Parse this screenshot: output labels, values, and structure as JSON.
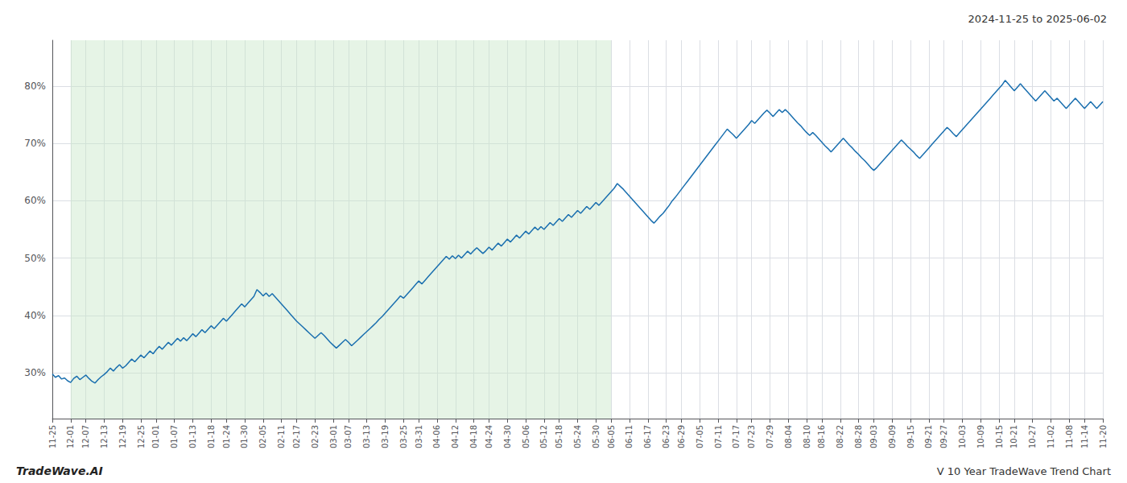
{
  "chart_data": {
    "type": "line",
    "title": "2024-11-25 to 2025-06-02",
    "annotations": [
      "TradeWave.AI",
      "V 10 Year TradeWave Trend Chart"
    ],
    "color": "#1a6faf",
    "grid": true,
    "highlight": {
      "start": "12-01",
      "end": "06-05",
      "color": "#c8e6c8"
    },
    "ylim": [
      22,
      88
    ],
    "yticks": [
      {
        "value": 30,
        "label": "30%"
      },
      {
        "value": 40,
        "label": "40%"
      },
      {
        "value": 50,
        "label": "50%"
      },
      {
        "value": 60,
        "label": "60%"
      },
      {
        "value": 70,
        "label": "70%"
      },
      {
        "value": 80,
        "label": "80%"
      }
    ],
    "categories": [
      "11-25",
      null,
      null,
      null,
      null,
      null,
      "12-01",
      null,
      null,
      null,
      null,
      "12-07",
      null,
      null,
      null,
      null,
      null,
      "12-13",
      null,
      null,
      null,
      null,
      null,
      "12-19",
      null,
      null,
      null,
      null,
      null,
      "12-25",
      null,
      null,
      null,
      null,
      "01-01",
      null,
      null,
      null,
      null,
      null,
      "01-07",
      null,
      null,
      null,
      null,
      null,
      "01-13",
      null,
      null,
      null,
      null,
      null,
      "01-18",
      null,
      null,
      null,
      null,
      "01-24",
      null,
      null,
      null,
      null,
      null,
      "01-30",
      null,
      null,
      null,
      null,
      null,
      "02-05",
      null,
      null,
      null,
      null,
      null,
      "02-11",
      null,
      null,
      null,
      null,
      "02-17",
      null,
      null,
      null,
      null,
      null,
      "02-23",
      null,
      null,
      null,
      null,
      null,
      "03-01",
      null,
      null,
      null,
      null,
      "03-07",
      null,
      null,
      null,
      null,
      null,
      "03-13",
      null,
      null,
      null,
      null,
      null,
      "03-19",
      null,
      null,
      null,
      null,
      null,
      "03-25",
      null,
      null,
      null,
      null,
      "03-31",
      null,
      null,
      null,
      null,
      null,
      "04-06",
      null,
      null,
      null,
      null,
      null,
      "04-12",
      null,
      null,
      null,
      null,
      null,
      "04-18",
      null,
      null,
      null,
      null,
      "04-24",
      null,
      null,
      null,
      null,
      null,
      "04-30",
      null,
      null,
      null,
      null,
      null,
      "05-06",
      null,
      null,
      null,
      null,
      null,
      "05-12",
      null,
      null,
      null,
      null,
      "05-18",
      null,
      null,
      null,
      null,
      null,
      "05-24",
      null,
      null,
      null,
      null,
      null,
      "05-30",
      null,
      null,
      null,
      null,
      "06-05",
      null,
      null,
      null,
      null,
      null,
      "06-11",
      null,
      null,
      null,
      null,
      null,
      "06-17",
      null,
      null,
      null,
      null,
      null,
      "06-23",
      null,
      null,
      null,
      null,
      "06-29",
      null,
      null,
      null,
      null,
      null,
      "07-05",
      null,
      null,
      null,
      null,
      null,
      "07-11",
      null,
      null,
      null,
      null,
      null,
      "07-17",
      null,
      null,
      null,
      null,
      "07-23",
      null,
      null,
      null,
      null,
      null,
      "07-29",
      null,
      null,
      null,
      null,
      null,
      "08-04",
      null,
      null,
      null,
      null,
      null,
      "08-10",
      null,
      null,
      null,
      null,
      "08-16",
      null,
      null,
      null,
      null,
      null,
      "08-22",
      null,
      null,
      null,
      null,
      null,
      "08-28",
      null,
      null,
      null,
      null,
      "09-03",
      null,
      null,
      null,
      null,
      null,
      "09-09",
      null,
      null,
      null,
      null,
      null,
      "09-15",
      null,
      null,
      null,
      null,
      null,
      "09-21",
      null,
      null,
      null,
      null,
      "09-27",
      null,
      null,
      null,
      null,
      null,
      "10-03",
      null,
      null,
      null,
      null,
      null,
      "10-09",
      null,
      null,
      null,
      null,
      null,
      "10-15",
      null,
      null,
      null,
      null,
      "10-21",
      null,
      null,
      null,
      null,
      null,
      "10-27",
      null,
      null,
      null,
      null,
      null,
      "11-02",
      null,
      null,
      null,
      null,
      null,
      "11-08",
      null,
      null,
      null,
      null,
      "11-14",
      null,
      null,
      null,
      null,
      null,
      "11-20"
    ],
    "values": [
      29.8,
      29.2,
      29.5,
      28.9,
      29.1,
      28.6,
      28.3,
      29.0,
      29.4,
      28.8,
      29.2,
      29.6,
      29.0,
      28.5,
      28.2,
      28.8,
      29.3,
      29.7,
      30.2,
      30.8,
      30.3,
      30.9,
      31.4,
      30.8,
      31.2,
      31.8,
      32.4,
      31.9,
      32.5,
      33.1,
      32.6,
      33.2,
      33.8,
      33.3,
      34.0,
      34.6,
      34.1,
      34.7,
      35.3,
      34.8,
      35.4,
      36.0,
      35.5,
      36.1,
      35.6,
      36.2,
      36.8,
      36.3,
      36.9,
      37.5,
      37.0,
      37.6,
      38.2,
      37.7,
      38.3,
      38.9,
      39.5,
      39.0,
      39.6,
      40.2,
      40.8,
      41.4,
      42.0,
      41.5,
      42.1,
      42.7,
      43.3,
      44.5,
      44.0,
      43.4,
      43.9,
      43.3,
      43.8,
      43.2,
      42.6,
      42.0,
      41.4,
      40.8,
      40.2,
      39.6,
      39.0,
      38.5,
      38.0,
      37.5,
      37.0,
      36.5,
      36.0,
      36.5,
      37.0,
      36.5,
      35.9,
      35.3,
      34.8,
      34.3,
      34.8,
      35.3,
      35.8,
      35.3,
      34.7,
      35.2,
      35.7,
      36.2,
      36.7,
      37.2,
      37.7,
      38.2,
      38.7,
      39.3,
      39.8,
      40.4,
      41.0,
      41.6,
      42.2,
      42.8,
      43.4,
      43.0,
      43.6,
      44.2,
      44.8,
      45.4,
      46.0,
      45.5,
      46.1,
      46.7,
      47.3,
      47.9,
      48.5,
      49.1,
      49.7,
      50.3,
      49.8,
      50.4,
      49.9,
      50.5,
      50.0,
      50.6,
      51.2,
      50.7,
      51.3,
      51.8,
      51.3,
      50.8,
      51.3,
      51.9,
      51.4,
      52.0,
      52.6,
      52.1,
      52.7,
      53.3,
      52.8,
      53.4,
      54.0,
      53.5,
      54.1,
      54.7,
      54.2,
      54.8,
      55.4,
      54.9,
      55.5,
      55.0,
      55.6,
      56.2,
      55.7,
      56.3,
      56.9,
      56.4,
      57.0,
      57.6,
      57.1,
      57.7,
      58.3,
      57.8,
      58.4,
      59.0,
      58.5,
      59.1,
      59.7,
      59.2,
      59.8,
      60.4,
      61.0,
      61.6,
      62.2,
      63.0,
      62.5,
      62.0,
      61.4,
      60.8,
      60.2,
      59.6,
      59.0,
      58.4,
      57.8,
      57.2,
      56.6,
      56.1,
      56.7,
      57.3,
      57.8,
      58.5,
      59.2,
      60.0,
      60.6,
      61.3,
      62.0,
      62.7,
      63.4,
      64.1,
      64.8,
      65.5,
      66.2,
      66.9,
      67.6,
      68.3,
      69.0,
      69.7,
      70.4,
      71.1,
      71.8,
      72.5,
      72.0,
      71.5,
      70.9,
      71.5,
      72.1,
      72.7,
      73.3,
      74.0,
      73.5,
      74.1,
      74.7,
      75.3,
      75.8,
      75.3,
      74.7,
      75.3,
      75.9,
      75.4,
      75.9,
      75.4,
      74.8,
      74.2,
      73.6,
      73.1,
      72.5,
      71.9,
      71.4,
      71.9,
      71.4,
      70.8,
      70.2,
      69.6,
      69.1,
      68.5,
      69.1,
      69.7,
      70.3,
      70.9,
      70.3,
      69.7,
      69.2,
      68.6,
      68.1,
      67.5,
      67.0,
      66.4,
      65.8,
      65.3,
      65.8,
      66.4,
      67.0,
      67.6,
      68.2,
      68.8,
      69.4,
      70.0,
      70.6,
      70.1,
      69.5,
      69.0,
      68.5,
      67.9,
      67.4,
      68.0,
      68.6,
      69.2,
      69.8,
      70.4,
      71.0,
      71.6,
      72.2,
      72.8,
      72.3,
      71.7,
      71.2,
      71.8,
      72.4,
      73.0,
      73.6,
      74.2,
      74.8,
      75.4,
      76.0,
      76.6,
      77.2,
      77.8,
      78.4,
      79.0,
      79.6,
      80.2,
      81.0,
      80.4,
      79.8,
      79.2,
      79.8,
      80.4,
      79.8,
      79.2,
      78.6,
      78.0,
      77.4,
      78.0,
      78.6,
      79.2,
      78.6,
      78.0,
      77.4,
      77.9,
      77.3,
      76.7,
      76.1,
      76.7,
      77.3,
      77.9,
      77.3,
      76.7,
      76.1,
      76.7,
      77.3,
      76.7,
      76.1,
      76.7,
      77.3
    ]
  }
}
